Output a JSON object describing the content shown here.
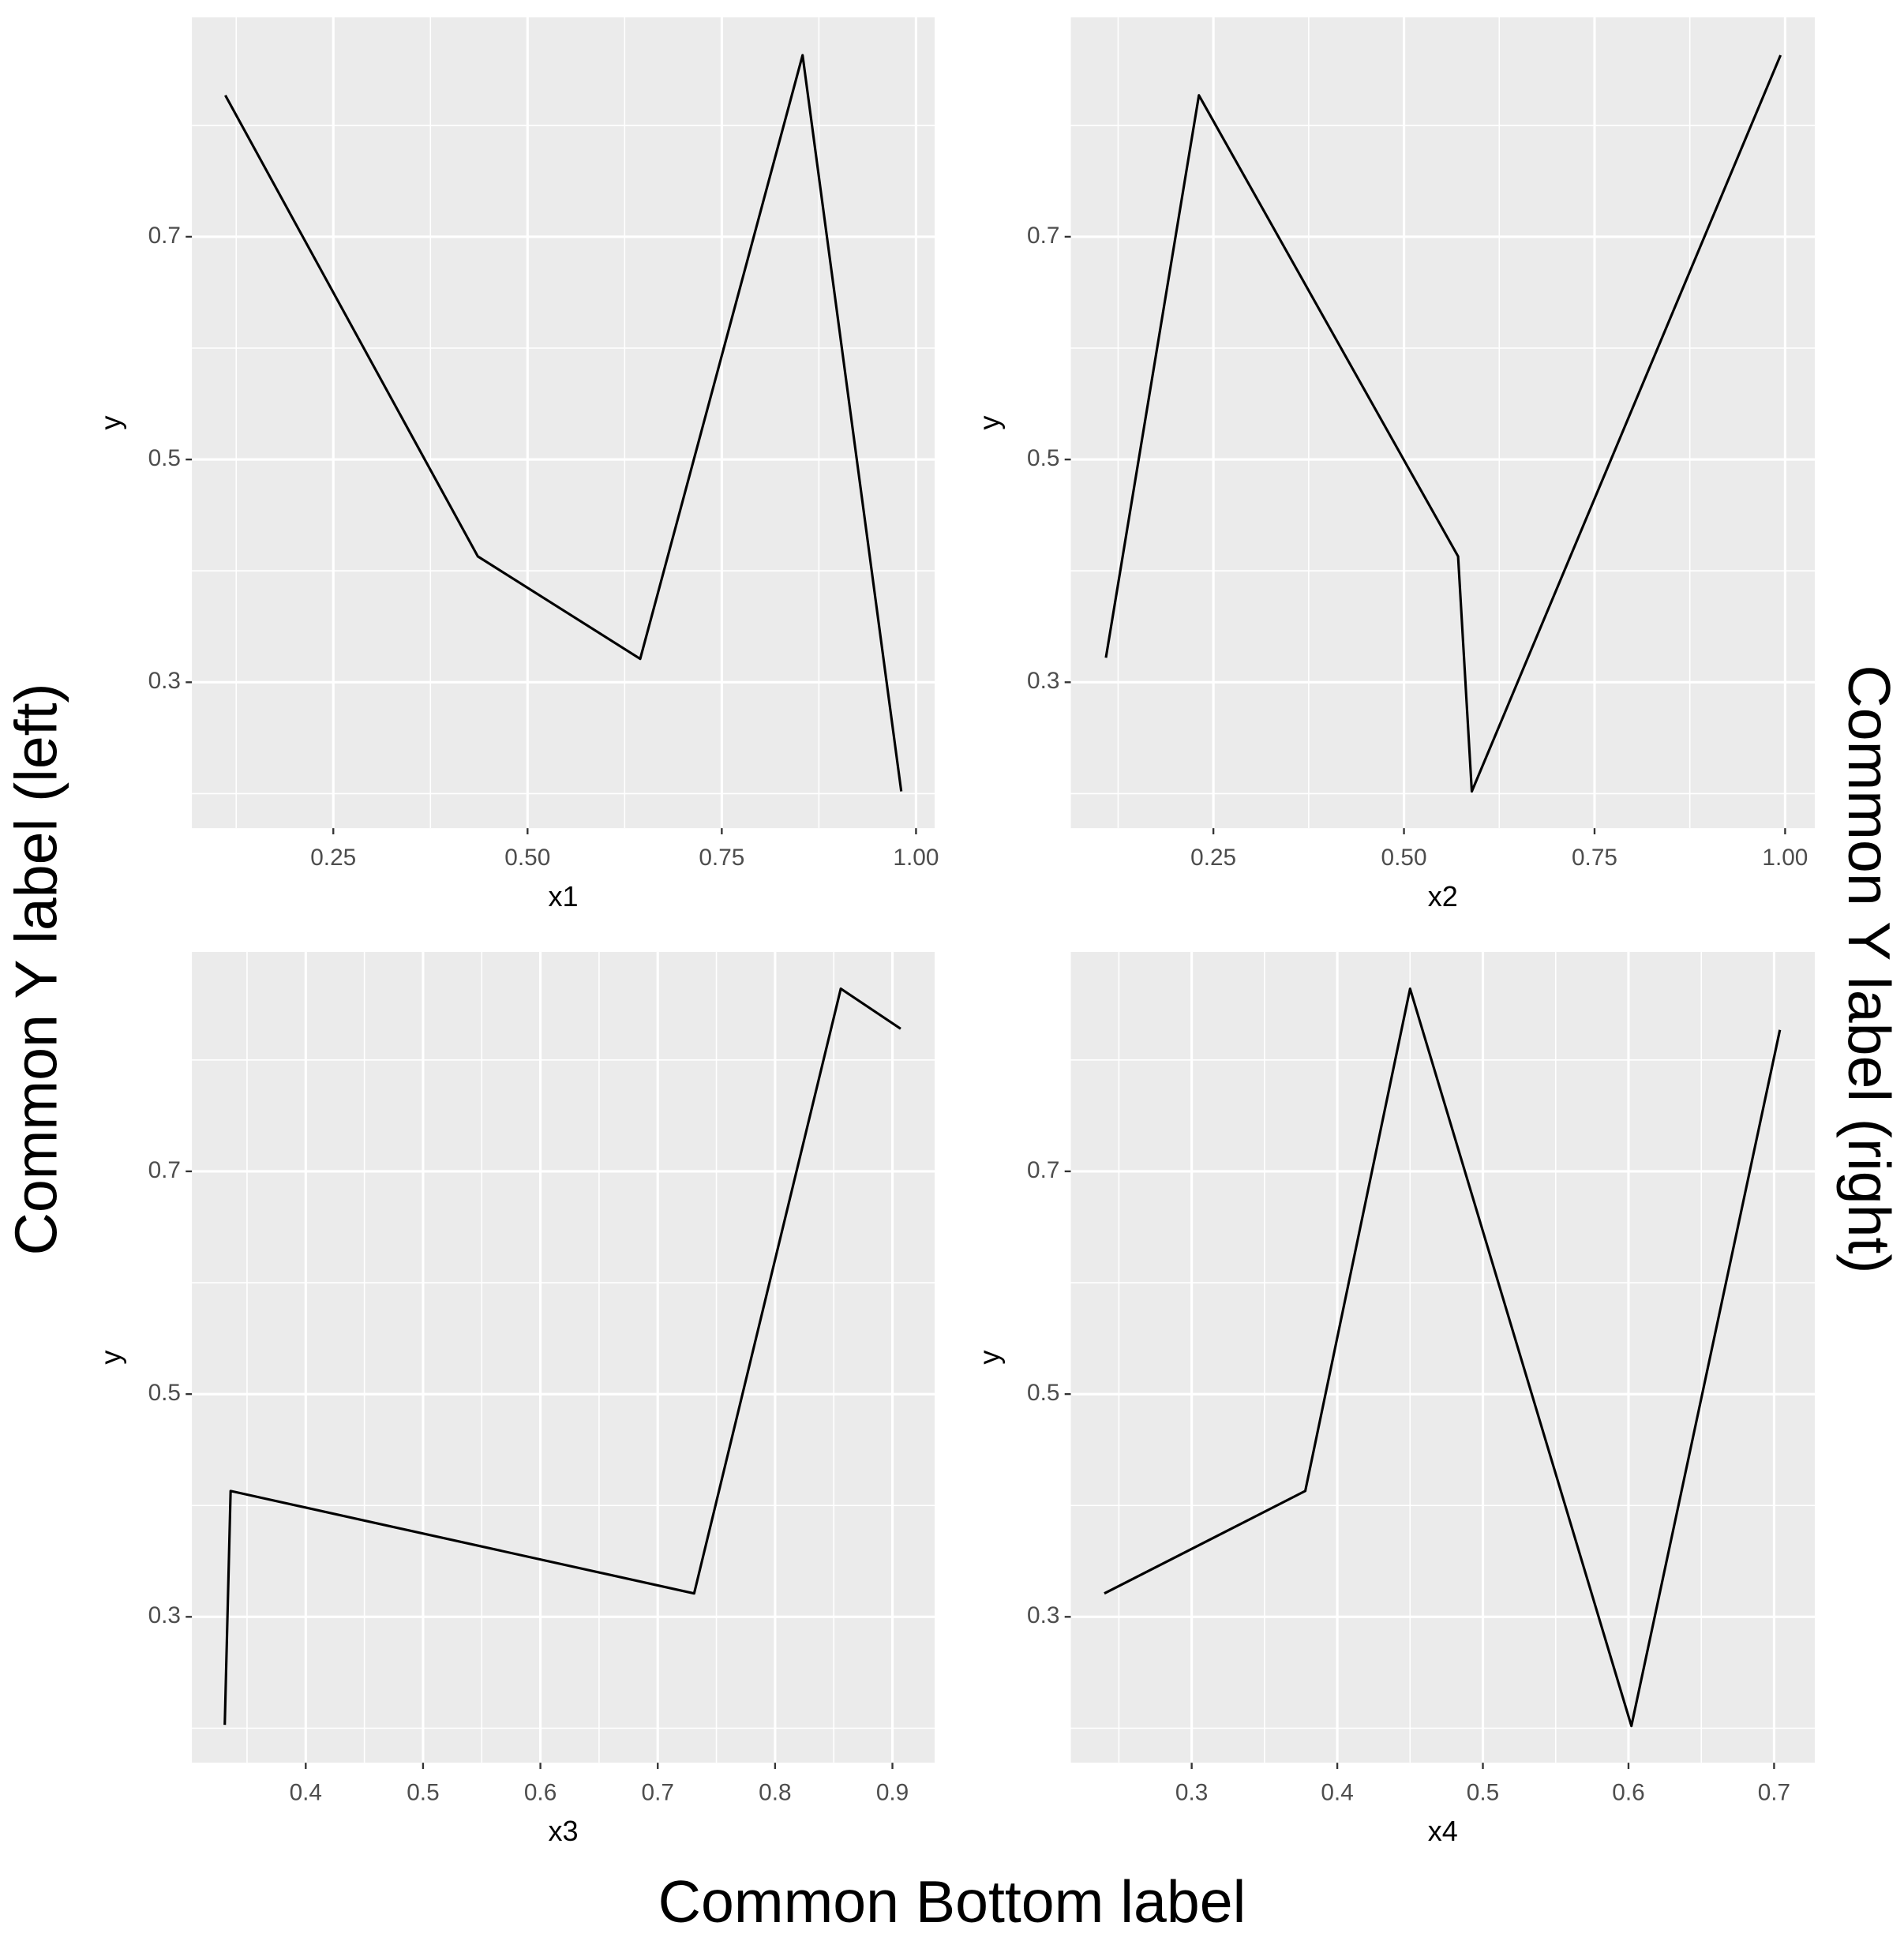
{
  "labels": {
    "left": "Common Y label (left)",
    "right": "Common Y label (right)",
    "bottom": "Common Bottom label"
  },
  "chart_data": [
    {
      "type": "line",
      "xlabel": "x1",
      "ylabel": "y",
      "color": "#000000",
      "grid": true,
      "x": [
        0.111,
        0.436,
        0.645,
        0.854,
        0.981
      ],
      "values": [
        0.827,
        0.413,
        0.321,
        0.863,
        0.202
      ],
      "xlim": [
        0.068,
        1.024
      ],
      "ylim": [
        0.169,
        0.897
      ],
      "xticks": [
        0.25,
        {
          "value": 0.5,
          "label": "0.50"
        },
        0.75,
        {
          "value": 1,
          "label": "1.00"
        }
      ],
      "yticks": [
        0.3,
        0.5,
        0.7
      ]
    },
    {
      "type": "line",
      "xlabel": "x2",
      "ylabel": "y",
      "color": "#000000",
      "grid": true,
      "x": [
        0.109,
        0.231,
        0.571,
        0.589,
        0.994
      ],
      "values": [
        0.322,
        0.827,
        0.413,
        0.202,
        0.863
      ],
      "xlim": [
        0.063,
        1.039
      ],
      "ylim": [
        0.169,
        0.897
      ],
      "xticks": [
        0.25,
        {
          "value": 0.5,
          "label": "0.50"
        },
        0.75,
        {
          "value": 1,
          "label": "1.00"
        }
      ],
      "yticks": [
        0.3,
        0.5,
        0.7
      ]
    },
    {
      "type": "line",
      "xlabel": "x3",
      "ylabel": "y",
      "color": "#000000",
      "grid": true,
      "x": [
        0.331,
        0.336,
        0.731,
        0.856,
        0.907
      ],
      "values": [
        0.203,
        0.413,
        0.321,
        0.864,
        0.828
      ],
      "xlim": [
        0.303,
        0.936
      ],
      "ylim": [
        0.169,
        0.897
      ],
      "xticks": [
        0.4,
        0.5,
        0.6,
        0.7,
        0.8,
        0.9
      ],
      "yticks": [
        0.3,
        0.5,
        0.7
      ]
    },
    {
      "type": "line",
      "xlabel": "x4",
      "ylabel": "y",
      "color": "#000000",
      "grid": true,
      "x": [
        0.24,
        0.378,
        0.45,
        0.602,
        0.704
      ],
      "values": [
        0.321,
        0.413,
        0.864,
        0.202,
        0.827
      ],
      "xlim": [
        0.217,
        0.728
      ],
      "ylim": [
        0.169,
        0.897
      ],
      "xticks": [
        0.3,
        0.4,
        0.5,
        0.6,
        0.7
      ],
      "yticks": [
        0.3,
        0.5,
        0.7
      ]
    }
  ]
}
